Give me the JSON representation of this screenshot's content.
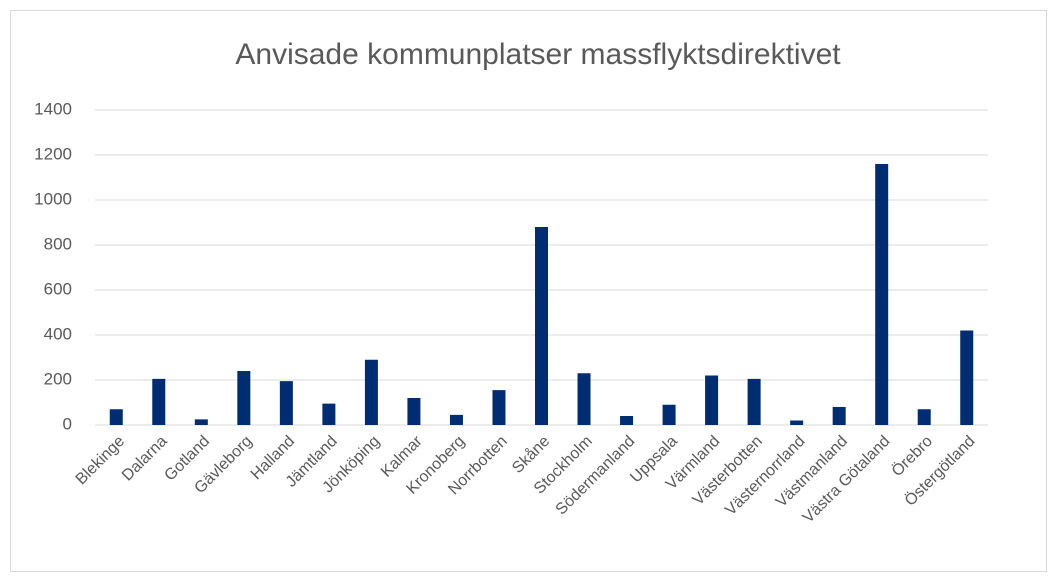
{
  "chart_data": {
    "type": "bar",
    "title": "Anvisade kommunplatser massflyktsdirektivet",
    "categories": [
      "Blekinge",
      "Dalarna",
      "Gotland",
      "Gävleborg",
      "Halland",
      "Jämtland",
      "Jönköping",
      "Kalmar",
      "Kronoberg",
      "Norrbotten",
      "Skåne",
      "Stockholm",
      "Södermanland",
      "Uppsala",
      "Värmland",
      "Västerbotten",
      "Västernorrland",
      "Västmanland",
      "Västra Götaland",
      "Örebro",
      "Östergötland"
    ],
    "values": [
      70,
      205,
      25,
      240,
      195,
      95,
      290,
      120,
      45,
      155,
      880,
      230,
      40,
      90,
      220,
      205,
      20,
      80,
      1160,
      70,
      420
    ],
    "color": "#002d72",
    "ylim": [
      0,
      1400
    ],
    "yticks": [
      0,
      200,
      400,
      600,
      800,
      1000,
      1200,
      1400
    ],
    "grid": true
  }
}
